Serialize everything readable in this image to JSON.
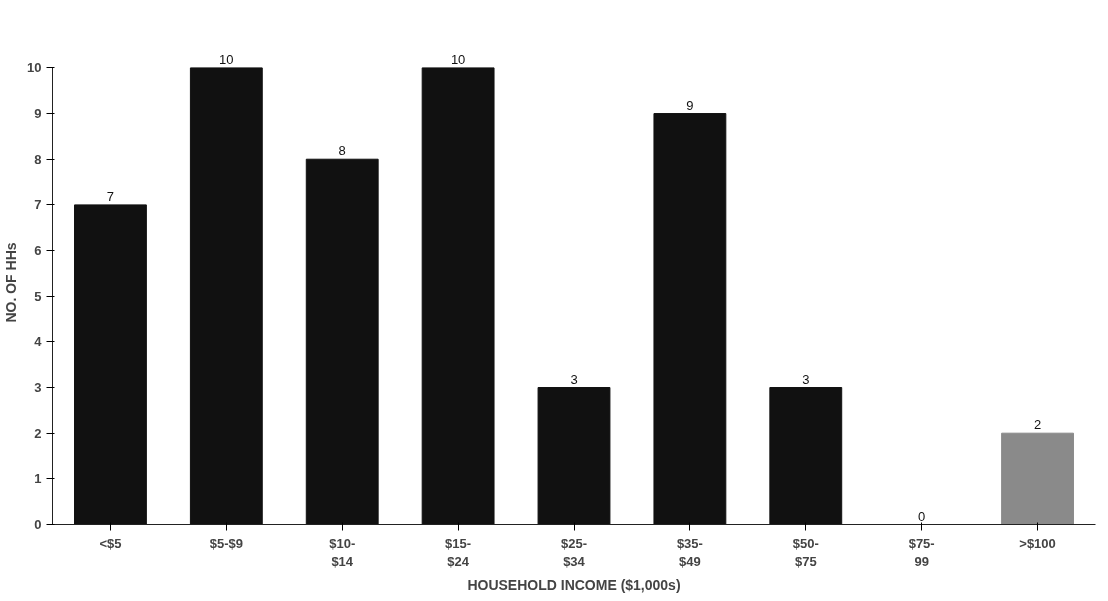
{
  "chart_data": {
    "type": "bar",
    "xlabel": "HOUSEHOLD INCOME ($1,000s)",
    "ylabel": "NO. OF HHs",
    "categories": [
      "<$5",
      "$5-$9",
      "$10-\n$14",
      "$15-\n$24",
      "$25-\n$34",
      "$35-\n$49",
      "$50-\n$75",
      "$75-\n99",
      ">$100"
    ],
    "values": [
      7,
      10,
      8,
      10,
      3,
      9,
      3,
      0,
      2
    ],
    "colors": [
      "#111111",
      "#111111",
      "#111111",
      "#111111",
      "#111111",
      "#111111",
      "#111111",
      "#111111",
      "#8a8a8a"
    ],
    "ylim": [
      0,
      10
    ],
    "yticks": [
      0,
      1,
      2,
      3,
      4,
      5,
      6,
      7,
      8,
      9,
      10
    ],
    "data_labels": true,
    "grid": false
  }
}
